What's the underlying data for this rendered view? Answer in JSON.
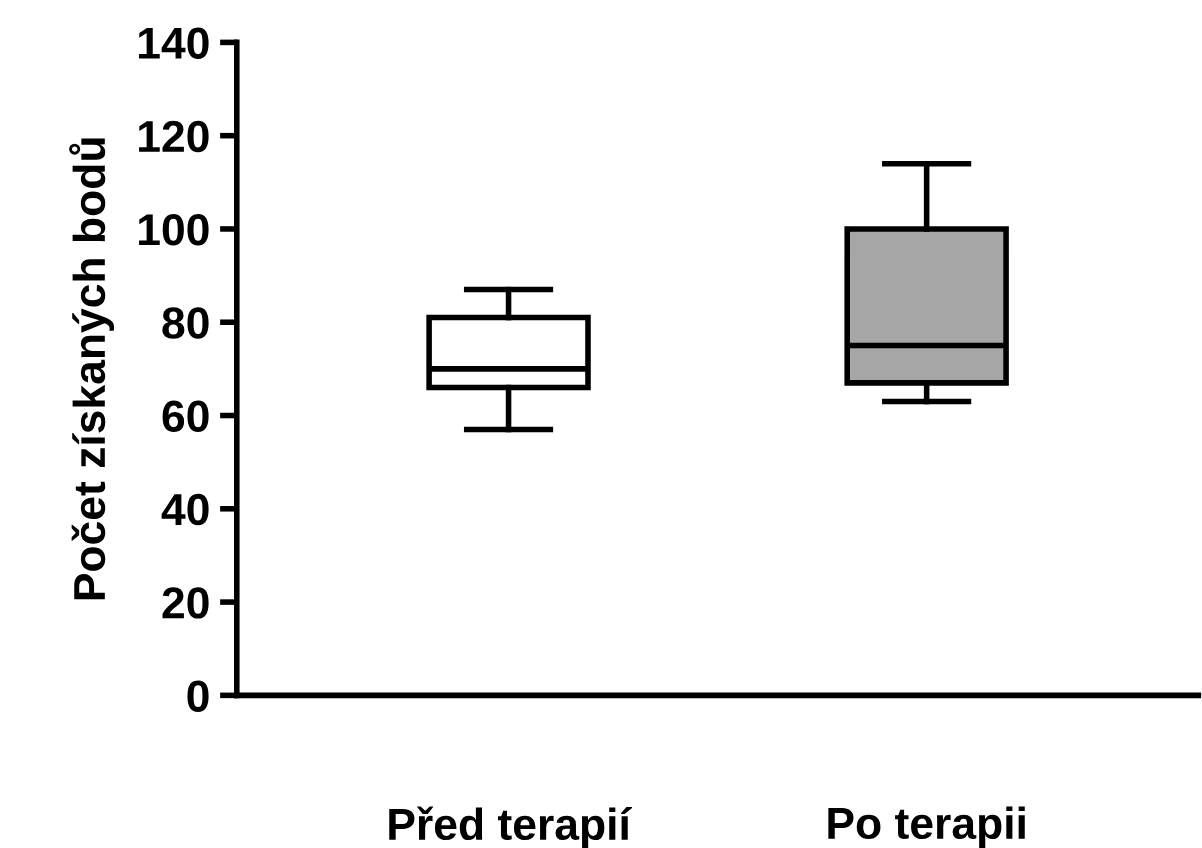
{
  "chart_data": {
    "type": "box",
    "ylabel": "Počet získaných bodů",
    "categories": [
      "Před terapií",
      "Po terapii"
    ],
    "boxes": [
      {
        "low": 57,
        "q1": 66,
        "median": 70,
        "q3": 81,
        "high": 87
      },
      {
        "low": 63,
        "q1": 67,
        "median": 75,
        "q3": 100,
        "high": 114
      }
    ],
    "colors": [
      "#ffffff",
      "#a6a6a6"
    ],
    "ylim": [
      0,
      140
    ],
    "yticks": [
      0,
      20,
      40,
      60,
      80,
      100,
      120,
      140
    ],
    "grid": false
  }
}
